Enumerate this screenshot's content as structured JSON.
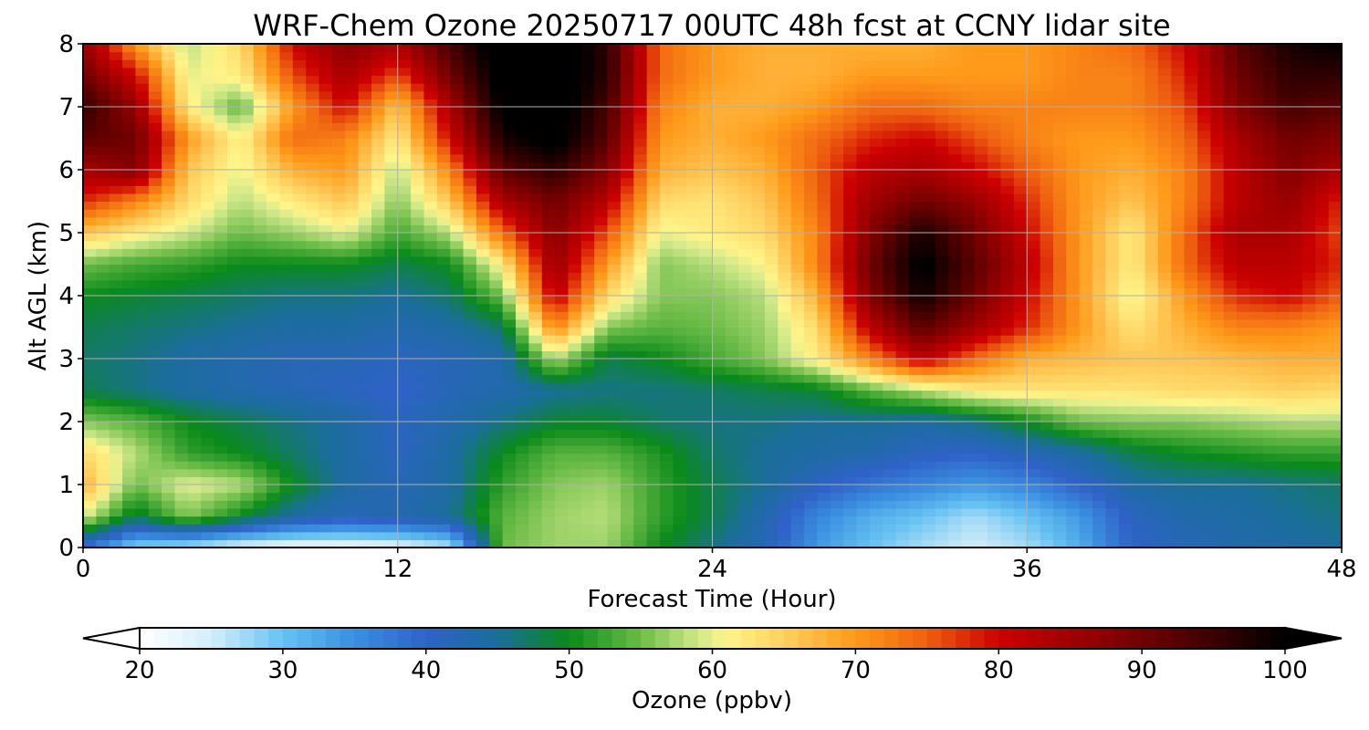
{
  "chart_data": {
    "type": "heatmap",
    "title": "WRF-Chem Ozone  20250717 00UTC 48h fcst at CCNY lidar site",
    "xlabel": "Forecast Time (Hour)",
    "ylabel": "Alt AGL (km)",
    "xlim": [
      0,
      48
    ],
    "ylim": [
      0,
      8
    ],
    "xticks": [
      "0",
      "12",
      "24",
      "36",
      "48"
    ],
    "xtick_values": [
      0,
      12,
      24,
      36,
      48
    ],
    "yticks": [
      "0",
      "1",
      "2",
      "3",
      "4",
      "5",
      "6",
      "7",
      "8"
    ],
    "ytick_values": [
      0,
      1,
      2,
      3,
      4,
      5,
      6,
      7,
      8
    ],
    "grid": true,
    "x": [
      0,
      2,
      4,
      6,
      8,
      10,
      12,
      14,
      16,
      18,
      20,
      22,
      24,
      26,
      28,
      30,
      32,
      34,
      36,
      38,
      40,
      42,
      44,
      46,
      48
    ],
    "y": [
      0,
      0.5,
      1,
      1.5,
      2,
      2.5,
      3,
      3.5,
      4,
      4.5,
      5,
      5.5,
      6,
      6.5,
      7,
      7.5,
      8
    ],
    "z": [
      [
        38,
        28,
        26,
        23,
        22,
        22,
        23,
        26,
        55,
        57,
        57,
        50,
        46,
        42,
        34,
        30,
        27,
        25,
        27,
        32,
        40,
        42,
        43,
        44,
        45
      ],
      [
        60,
        48,
        56,
        50,
        44,
        42,
        43,
        45,
        54,
        57,
        58,
        52,
        48,
        43,
        36,
        32,
        30,
        27,
        30,
        34,
        41,
        43,
        44,
        45,
        46
      ],
      [
        68,
        55,
        60,
        58,
        50,
        44,
        42,
        44,
        52,
        56,
        57,
        52,
        48,
        45,
        41,
        38,
        36,
        34,
        36,
        40,
        44,
        45,
        45,
        46,
        47
      ],
      [
        64,
        58,
        52,
        50,
        47,
        44,
        41,
        44,
        50,
        54,
        54,
        51,
        47,
        45,
        44,
        43,
        41,
        40,
        42,
        44,
        48,
        50,
        51,
        52,
        52
      ],
      [
        56,
        54,
        50,
        48,
        46,
        44,
        41,
        43,
        46,
        49,
        49,
        47,
        46,
        46,
        45,
        45,
        44,
        46,
        50,
        55,
        56,
        56,
        57,
        58,
        58
      ],
      [
        48,
        46,
        44,
        43,
        42,
        41,
        40,
        42,
        43,
        45,
        46,
        46,
        47,
        48,
        49,
        54,
        58,
        62,
        63,
        63,
        63,
        64,
        64,
        65,
        64
      ],
      [
        47,
        46,
        44,
        43,
        42,
        42,
        41,
        42,
        43,
        58,
        48,
        50,
        53,
        56,
        62,
        72,
        82,
        74,
        68,
        67,
        66,
        66,
        67,
        68,
        68
      ],
      [
        48,
        47,
        46,
        45,
        44,
        44,
        43,
        44,
        47,
        72,
        56,
        54,
        55,
        57,
        64,
        82,
        92,
        85,
        78,
        70,
        63,
        68,
        72,
        72,
        70
      ],
      [
        50,
        49,
        48,
        47,
        46,
        46,
        45,
        47,
        55,
        82,
        64,
        56,
        56,
        58,
        68,
        88,
        99,
        90,
        80,
        70,
        60,
        70,
        78,
        80,
        75
      ],
      [
        55,
        53,
        52,
        50,
        50,
        50,
        48,
        50,
        62,
        86,
        70,
        56,
        58,
        61,
        72,
        90,
        101,
        92,
        82,
        70,
        62,
        74,
        82,
        82,
        78
      ],
      [
        66,
        62,
        59,
        55,
        57,
        60,
        53,
        58,
        74,
        88,
        76,
        60,
        62,
        64,
        72,
        88,
        98,
        90,
        80,
        70,
        62,
        74,
        84,
        84,
        76
      ],
      [
        78,
        72,
        64,
        58,
        62,
        66,
        56,
        66,
        84,
        90,
        82,
        64,
        63,
        66,
        74,
        85,
        90,
        86,
        78,
        70,
        66,
        72,
        82,
        86,
        78
      ],
      [
        84,
        88,
        66,
        60,
        68,
        70,
        58,
        72,
        92,
        96,
        88,
        68,
        66,
        68,
        75,
        82,
        84,
        80,
        75,
        70,
        68,
        72,
        82,
        88,
        84
      ],
      [
        92,
        90,
        70,
        61,
        74,
        72,
        62,
        80,
        98,
        102,
        92,
        70,
        68,
        70,
        74,
        78,
        80,
        76,
        72,
        70,
        70,
        74,
        84,
        90,
        88
      ],
      [
        96,
        86,
        62,
        54,
        70,
        80,
        66,
        84,
        101,
        103,
        94,
        72,
        68,
        68,
        70,
        74,
        74,
        72,
        72,
        72,
        72,
        76,
        88,
        94,
        92
      ],
      [
        90,
        80,
        60,
        62,
        76,
        84,
        76,
        90,
        102,
        104,
        96,
        74,
        70,
        68,
        68,
        70,
        70,
        70,
        70,
        72,
        72,
        78,
        90,
        96,
        96
      ],
      [
        86,
        70,
        58,
        64,
        80,
        88,
        84,
        94,
        103,
        104,
        96,
        74,
        70,
        68,
        68,
        68,
        68,
        70,
        70,
        72,
        74,
        80,
        92,
        98,
        100
      ]
    ],
    "colorbar": {
      "label": "Ozone  (ppbv)",
      "min": 20,
      "max": 100,
      "ticks": [
        "20",
        "30",
        "40",
        "50",
        "60",
        "70",
        "80",
        "90",
        "100"
      ],
      "tick_values": [
        20,
        30,
        40,
        50,
        60,
        70,
        80,
        90,
        100
      ],
      "extend": "both",
      "color_stops": [
        [
          20,
          "#ffffff"
        ],
        [
          25,
          "#d4eefa"
        ],
        [
          30,
          "#66c2f2"
        ],
        [
          35,
          "#3a8fe0"
        ],
        [
          40,
          "#2f62c8"
        ],
        [
          45,
          "#1a6e9a"
        ],
        [
          50,
          "#0a8a1a"
        ],
        [
          55,
          "#6cbc48"
        ],
        [
          59,
          "#cfe88a"
        ],
        [
          61,
          "#fff58a"
        ],
        [
          65,
          "#ffd060"
        ],
        [
          70,
          "#ff9a1a"
        ],
        [
          75,
          "#ee6010"
        ],
        [
          80,
          "#cc0000"
        ],
        [
          85,
          "#a00000"
        ],
        [
          90,
          "#700000"
        ],
        [
          95,
          "#3a0000"
        ],
        [
          100,
          "#000000"
        ]
      ]
    }
  }
}
